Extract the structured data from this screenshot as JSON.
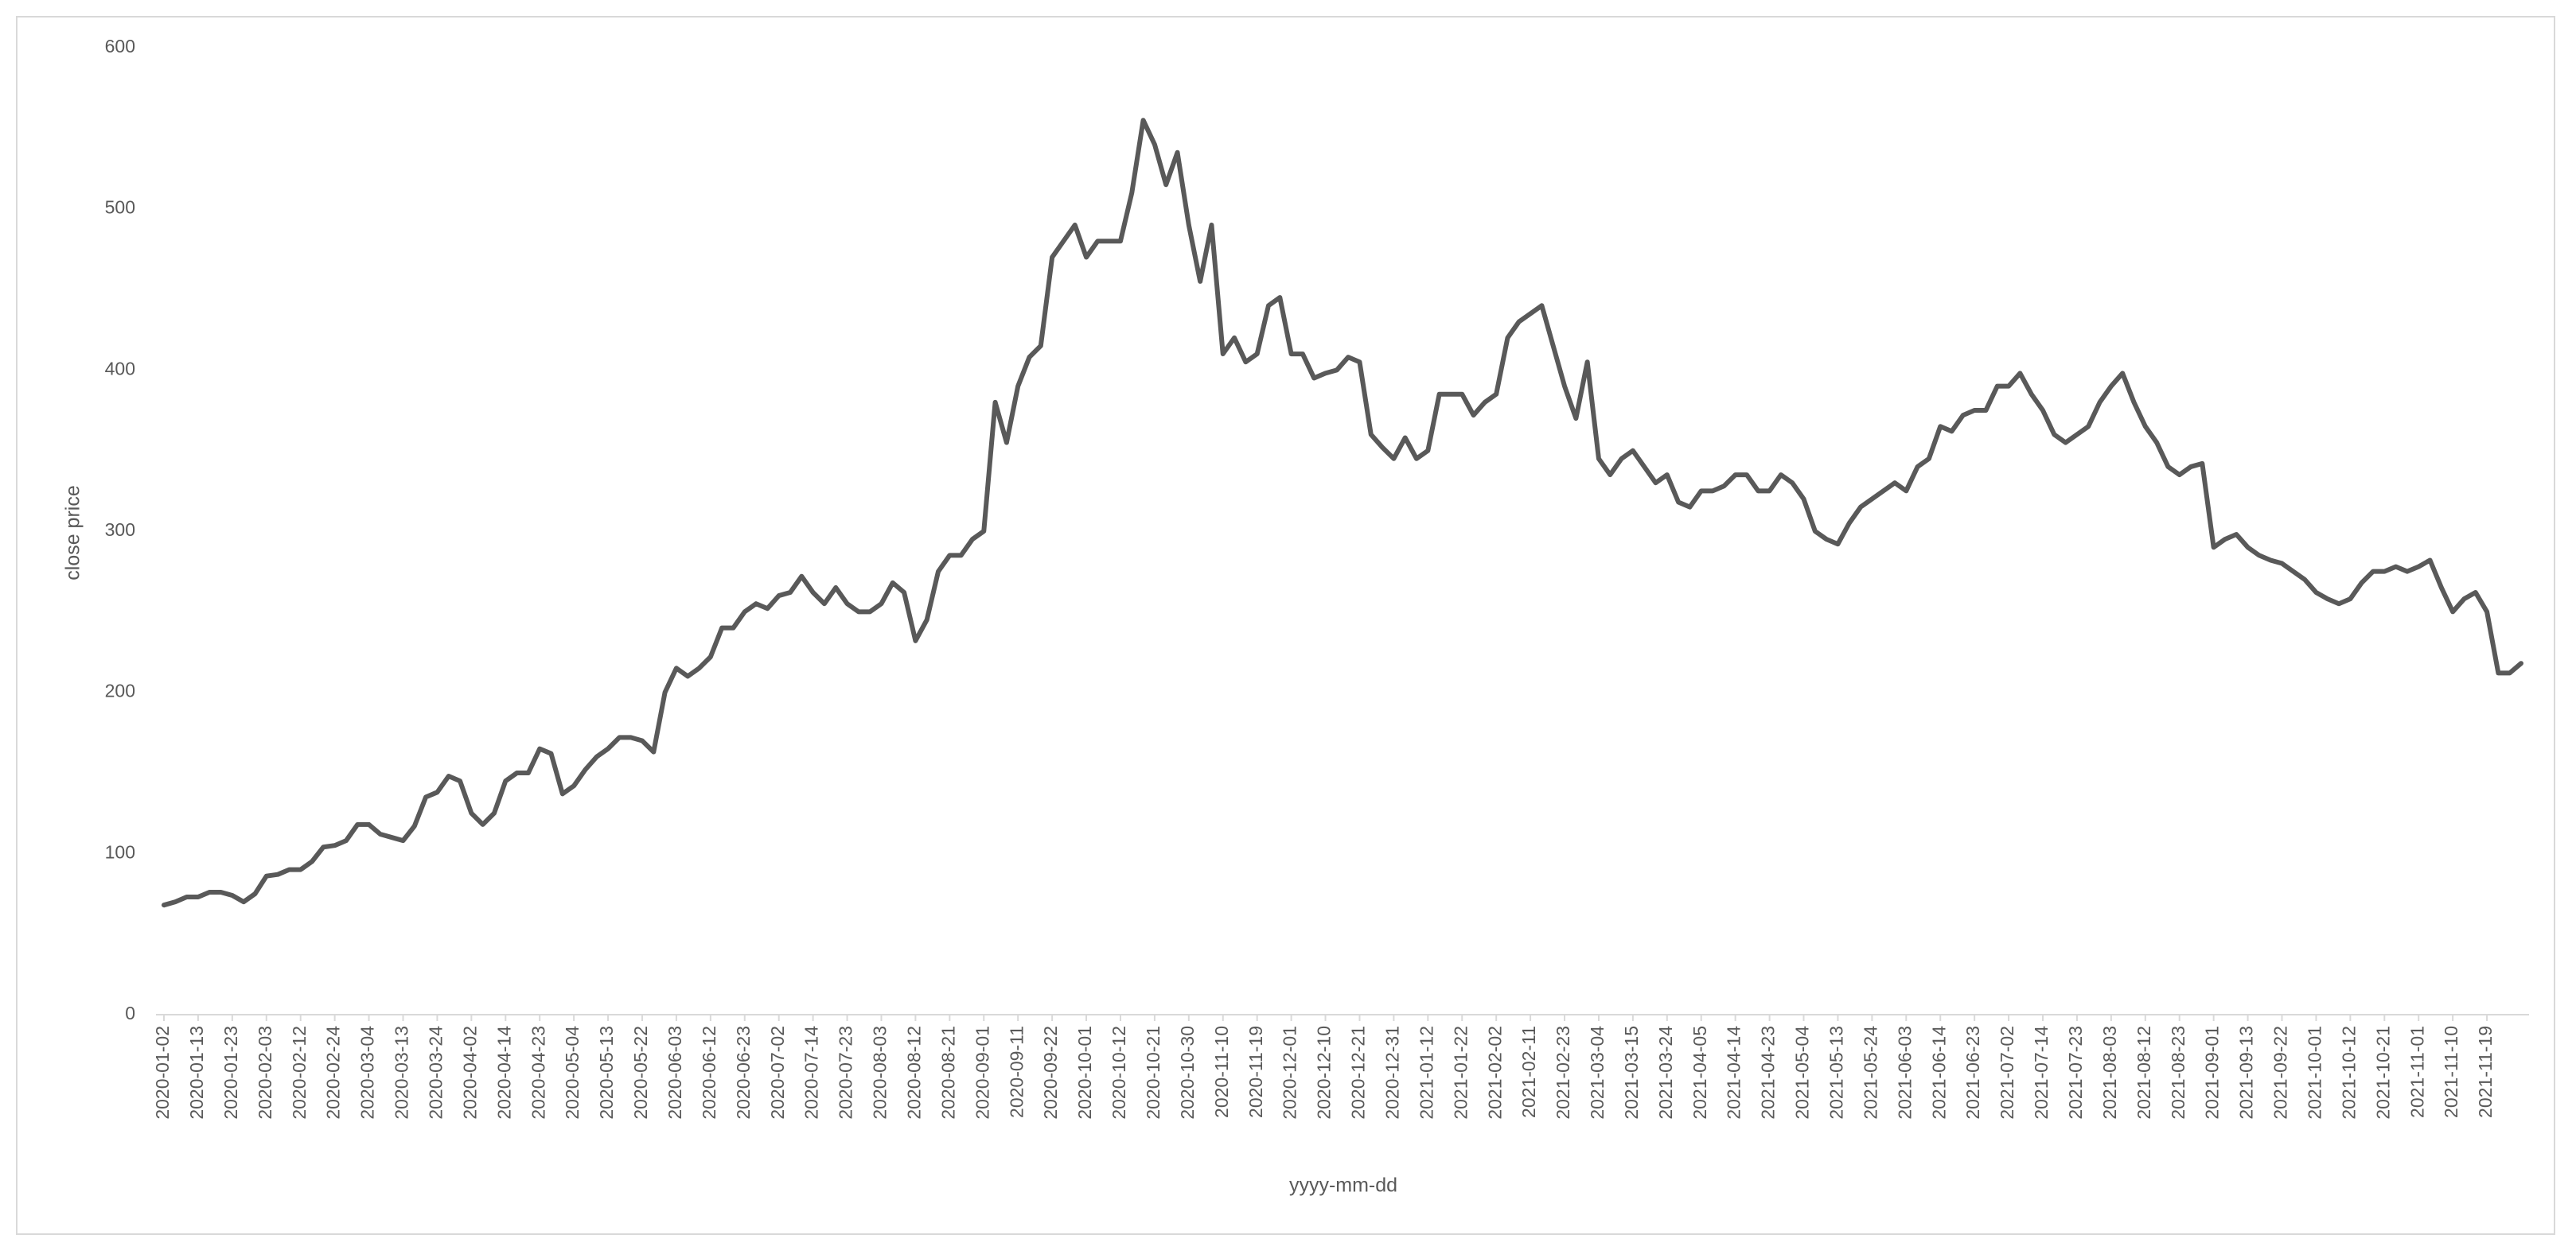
{
  "chart_data": {
    "type": "line",
    "x_label": "yyyy-mm-dd",
    "y_label": "close price",
    "color": "#595959",
    "ylim": [
      0,
      600
    ],
    "yticks": [
      0,
      100,
      200,
      300,
      400,
      500,
      600
    ],
    "grid": false,
    "categories": [
      "2020-01-02",
      null,
      null,
      "2020-01-13",
      null,
      null,
      "2020-01-23",
      null,
      null,
      "2020-02-03",
      null,
      null,
      "2020-02-12",
      null,
      null,
      "2020-02-24",
      null,
      null,
      "2020-03-04",
      null,
      null,
      "2020-03-13",
      null,
      null,
      "2020-03-24",
      null,
      null,
      "2020-04-02",
      null,
      null,
      "2020-04-14",
      null,
      null,
      "2020-04-23",
      null,
      null,
      "2020-05-04",
      null,
      null,
      "2020-05-13",
      null,
      null,
      "2020-05-22",
      null,
      null,
      "2020-06-03",
      null,
      null,
      "2020-06-12",
      null,
      null,
      "2020-06-23",
      null,
      null,
      "2020-07-02",
      null,
      null,
      "2020-07-14",
      null,
      null,
      "2020-07-23",
      null,
      null,
      "2020-08-03",
      null,
      null,
      "2020-08-12",
      null,
      null,
      "2020-08-21",
      null,
      null,
      "2020-09-01",
      null,
      null,
      "2020-09-11",
      null,
      null,
      "2020-09-22",
      null,
      null,
      "2020-10-01",
      null,
      null,
      "2020-10-12",
      null,
      null,
      "2020-10-21",
      null,
      null,
      "2020-10-30",
      null,
      null,
      "2020-11-10",
      null,
      null,
      "2020-11-19",
      null,
      null,
      "2020-12-01",
      null,
      null,
      "2020-12-10",
      null,
      null,
      "2020-12-21",
      null,
      null,
      "2020-12-31",
      null,
      null,
      "2021-01-12",
      null,
      null,
      "2021-01-22",
      null,
      null,
      "2021-02-02",
      null,
      null,
      "2021-02-11",
      null,
      null,
      "2021-02-23",
      null,
      null,
      "2021-03-04",
      null,
      null,
      "2021-03-15",
      null,
      null,
      "2021-03-24",
      null,
      null,
      "2021-04-05",
      null,
      null,
      "2021-04-14",
      null,
      null,
      "2021-04-23",
      null,
      null,
      "2021-05-04",
      null,
      null,
      "2021-05-13",
      null,
      null,
      "2021-05-24",
      null,
      null,
      "2021-06-03",
      null,
      null,
      "2021-06-14",
      null,
      null,
      "2021-06-23",
      null,
      null,
      "2021-07-02",
      null,
      null,
      "2021-07-14",
      null,
      null,
      "2021-07-23",
      null,
      null,
      "2021-08-03",
      null,
      null,
      "2021-08-12",
      null,
      null,
      "2021-08-23",
      null,
      null,
      "2021-09-01",
      null,
      null,
      "2021-09-13",
      null,
      null,
      "2021-09-22",
      null,
      null,
      "2021-10-01",
      null,
      null,
      "2021-10-12",
      null,
      null,
      "2021-10-21",
      null,
      null,
      "2021-11-01",
      null,
      null,
      "2021-11-10",
      null,
      null,
      "2021-11-19",
      null,
      null,
      null
    ],
    "values": [
      68,
      70,
      73,
      73,
      76,
      76,
      74,
      70,
      75,
      86,
      87,
      90,
      90,
      95,
      104,
      105,
      108,
      118,
      118,
      112,
      110,
      108,
      117,
      135,
      138,
      148,
      145,
      125,
      118,
      125,
      145,
      150,
      150,
      165,
      162,
      137,
      142,
      152,
      160,
      165,
      172,
      172,
      170,
      163,
      200,
      215,
      210,
      215,
      222,
      240,
      240,
      250,
      255,
      252,
      260,
      262,
      272,
      262,
      255,
      265,
      255,
      250,
      250,
      255,
      268,
      262,
      232,
      245,
      275,
      285,
      285,
      295,
      300,
      380,
      355,
      390,
      408,
      415,
      470,
      480,
      490,
      470,
      480,
      480,
      480,
      510,
      555,
      540,
      515,
      535,
      490,
      455,
      490,
      410,
      420,
      405,
      410,
      440,
      445,
      410,
      410,
      395,
      398,
      400,
      408,
      405,
      360,
      352,
      345,
      358,
      345,
      350,
      385,
      385,
      385,
      372,
      380,
      385,
      420,
      430,
      435,
      440,
      415,
      390,
      370,
      405,
      345,
      335,
      345,
      350,
      340,
      330,
      335,
      318,
      315,
      325,
      325,
      328,
      335,
      335,
      325,
      325,
      335,
      330,
      320,
      300,
      295,
      292,
      305,
      315,
      320,
      325,
      330,
      325,
      340,
      345,
      365,
      362,
      372,
      375,
      375,
      390,
      390,
      398,
      385,
      375,
      360,
      355,
      360,
      365,
      380,
      390,
      398,
      380,
      365,
      355,
      340,
      335,
      340,
      342,
      290,
      295,
      298,
      290,
      285,
      282,
      280,
      275,
      270,
      262,
      258,
      255,
      258,
      268,
      275,
      275,
      278,
      275,
      278,
      282,
      265,
      250,
      258,
      262,
      250,
      212,
      212,
      218
    ]
  }
}
